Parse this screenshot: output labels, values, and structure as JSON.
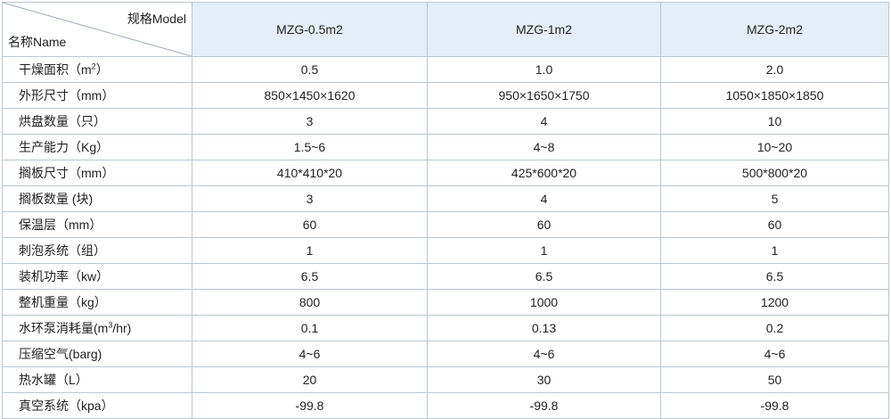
{
  "header": {
    "spec_label": "规格Model",
    "name_label": "名称Name",
    "models": [
      "MZG-0.5m2",
      "MZG-1m2",
      "MZG-2m2"
    ]
  },
  "rows": [
    {
      "label_pre": "干燥面积（m",
      "label_sup": "2",
      "label_post": "）",
      "values": [
        "0.5",
        "1.0",
        "2.0"
      ]
    },
    {
      "label_pre": "外形尺寸（mm）",
      "label_sup": "",
      "label_post": "",
      "values": [
        "850×1450×1620",
        "950×1650×1750",
        "1050×1850×1850"
      ]
    },
    {
      "label_pre": "烘盘数量（只）",
      "label_sup": "",
      "label_post": "",
      "values": [
        "3",
        "4",
        "10"
      ]
    },
    {
      "label_pre": "生产能力（Kg）",
      "label_sup": "",
      "label_post": "",
      "values": [
        "1.5~6",
        "4~8",
        "10~20"
      ]
    },
    {
      "label_pre": "搁板尺寸（mm）",
      "label_sup": "",
      "label_post": "",
      "values": [
        "410*410*20",
        "425*600*20",
        "500*800*20"
      ]
    },
    {
      "label_pre": "搁板数量 (块)",
      "label_sup": "",
      "label_post": "",
      "values": [
        "3",
        "4",
        "5"
      ]
    },
    {
      "label_pre": "保温层（mm）",
      "label_sup": "",
      "label_post": "",
      "values": [
        "60",
        "60",
        "60"
      ]
    },
    {
      "label_pre": "刺泡系统（组）",
      "label_sup": "",
      "label_post": "",
      "values": [
        "1",
        "1",
        "1"
      ]
    },
    {
      "label_pre": "装机功率（kw）",
      "label_sup": "",
      "label_post": "",
      "values": [
        "6.5",
        "6.5",
        "6.5"
      ]
    },
    {
      "label_pre": "整机重量（kg）",
      "label_sup": "",
      "label_post": "",
      "values": [
        "800",
        "1000",
        "1200"
      ]
    },
    {
      "label_pre": "水环泵消耗量(m",
      "label_sup": "3",
      "label_post": "/hr)",
      "values": [
        "0.1",
        "0.13",
        "0.2"
      ]
    },
    {
      "label_pre": "压缩空气(barg)",
      "label_sup": "",
      "label_post": "",
      "values": [
        "4~6",
        "4~6",
        "4~6"
      ]
    },
    {
      "label_pre": "热水罐（L）",
      "label_sup": "",
      "label_post": "",
      "values": [
        "20",
        "30",
        "50"
      ]
    },
    {
      "label_pre": "真空系统（kpa）",
      "label_sup": "",
      "label_post": "",
      "values": [
        "-99.8",
        "-99.8",
        "-99.8"
      ]
    }
  ]
}
